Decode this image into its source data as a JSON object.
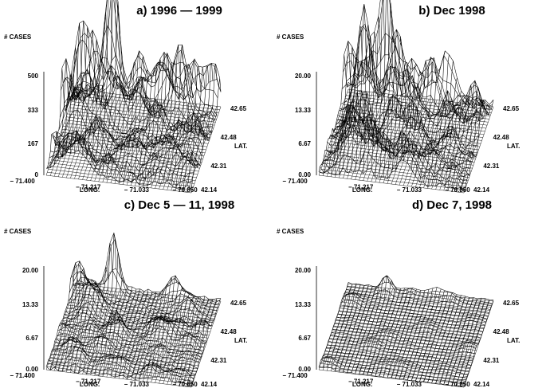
{
  "chart_data": [
    {
      "type": "surface",
      "title": "a)  1996 — 1999",
      "zlabel": "#  CASES",
      "z_ticks": [
        "500",
        "333",
        "167",
        "0"
      ],
      "zlim": [
        0,
        500
      ],
      "xlabel": "LONG.",
      "x_ticks": [
        "− 71.400",
        "− 71.217",
        "− 71.033",
        "− 70.850"
      ],
      "xlim": [
        -71.4,
        -70.85
      ],
      "ylabel": "LAT.",
      "y_ticks": [
        "42.14",
        "42.31",
        "42.48",
        "42.65"
      ],
      "ylim": [
        42.14,
        42.65
      ],
      "peak": {
        "long": -71.25,
        "lat": 42.62,
        "cases": 470
      },
      "activity": 1.0
    },
    {
      "type": "surface",
      "title": "b)  Dec 1998",
      "zlabel": "#  CASES",
      "z_ticks": [
        "20.00",
        "13.33",
        "6.67",
        "0.00"
      ],
      "zlim": [
        0,
        20
      ],
      "xlabel": "LONG.",
      "x_ticks": [
        "− 71.400",
        "− 71.217",
        "− 71.033",
        "− 70.850"
      ],
      "xlim": [
        -71.4,
        -70.85
      ],
      "ylabel": "LAT.",
      "y_ticks": [
        "42.14",
        "42.31",
        "42.48",
        "42.65"
      ],
      "ylim": [
        42.14,
        42.65
      ],
      "peak": {
        "long": -71.25,
        "lat": 42.62,
        "cases": 20
      },
      "activity": 1.0
    },
    {
      "type": "surface",
      "title": "c)  Dec  5 — 11, 1998",
      "zlabel": "#  CASES",
      "z_ticks": [
        "20.00",
        "13.33",
        "6.67",
        "0.00"
      ],
      "zlim": [
        0,
        20
      ],
      "xlabel": "LONG.",
      "x_ticks": [
        "− 71.400",
        "− 71.217",
        "− 71.033",
        "− 70.850"
      ],
      "xlim": [
        -71.4,
        -70.85
      ],
      "ylabel": "LAT.",
      "y_ticks": [
        "42.14",
        "42.31",
        "42.48",
        "42.65"
      ],
      "ylim": [
        42.14,
        42.65
      ],
      "peak": {
        "long": -71.25,
        "lat": 42.62,
        "cases": 10
      },
      "activity": 0.5
    },
    {
      "type": "surface",
      "title": "d)  Dec  7, 1998",
      "zlabel": "#  CASES",
      "z_ticks": [
        "20.00",
        "13.33",
        "6.67",
        "0.00"
      ],
      "zlim": [
        0,
        20
      ],
      "xlabel": "LONG.",
      "x_ticks": [
        "− 71.400",
        "− 71.217",
        "− 71.033",
        "− 70.850"
      ],
      "xlim": [
        -71.4,
        -70.85
      ],
      "ylabel": "LAT.",
      "y_ticks": [
        "42.14",
        "42.31",
        "42.48",
        "42.65"
      ],
      "ylim": [
        42.14,
        42.65
      ],
      "peak": {
        "long": -71.25,
        "lat": 42.62,
        "cases": 3
      },
      "activity": 0.18
    }
  ]
}
